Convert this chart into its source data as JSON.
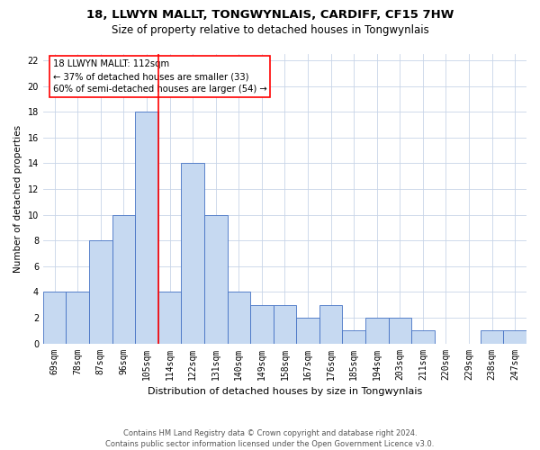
{
  "title_line1": "18, LLWYN MALLT, TONGWYNLAIS, CARDIFF, CF15 7HW",
  "title_line2": "Size of property relative to detached houses in Tongwynlais",
  "xlabel": "Distribution of detached houses by size in Tongwynlais",
  "ylabel": "Number of detached properties",
  "footnote": "Contains HM Land Registry data © Crown copyright and database right 2024.\nContains public sector information licensed under the Open Government Licence v3.0.",
  "bin_labels": [
    "69sqm",
    "78sqm",
    "87sqm",
    "96sqm",
    "105sqm",
    "114sqm",
    "122sqm",
    "131sqm",
    "140sqm",
    "149sqm",
    "158sqm",
    "167sqm",
    "176sqm",
    "185sqm",
    "194sqm",
    "203sqm",
    "211sqm",
    "220sqm",
    "229sqm",
    "238sqm",
    "247sqm"
  ],
  "bar_values": [
    4,
    4,
    8,
    10,
    18,
    4,
    14,
    10,
    4,
    3,
    3,
    2,
    3,
    1,
    2,
    2,
    1,
    0,
    0,
    1,
    1
  ],
  "bar_color": "#c6d9f1",
  "bar_edge_color": "#4472c4",
  "red_line_x": 4.5,
  "annotation_text": "18 LLWYN MALLT: 112sqm\n← 37% of detached houses are smaller (33)\n60% of semi-detached houses are larger (54) →",
  "ylim": [
    0,
    22.5
  ],
  "yticks": [
    0,
    2,
    4,
    6,
    8,
    10,
    12,
    14,
    16,
    18,
    20,
    22
  ],
  "background_color": "#ffffff",
  "grid_color": "#c8d4e8"
}
